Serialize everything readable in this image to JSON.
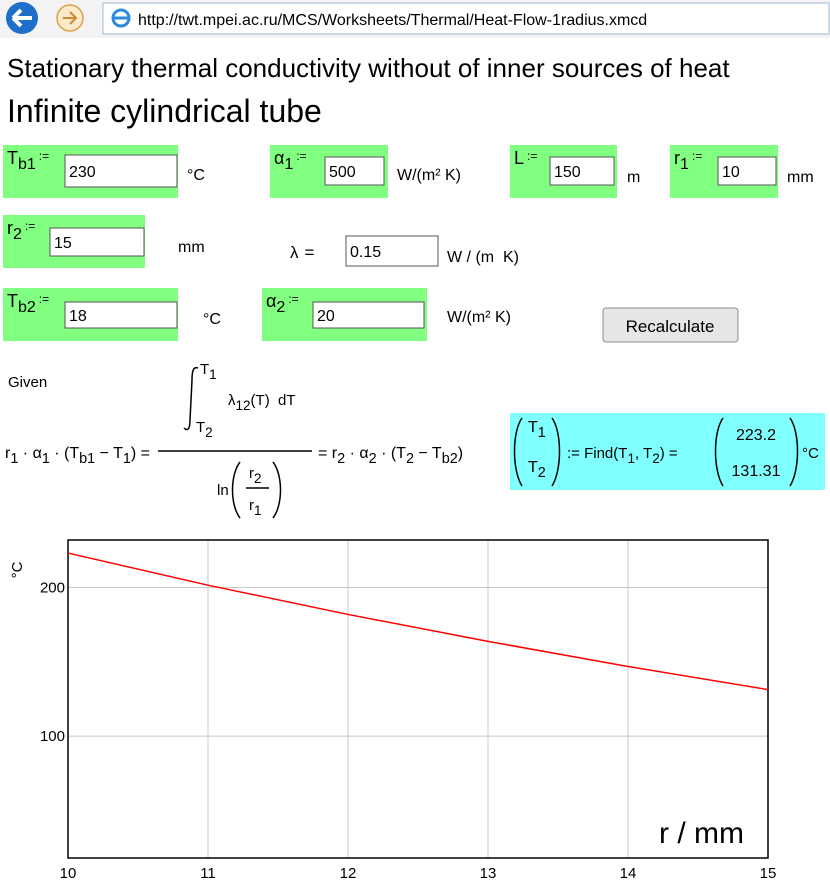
{
  "browser": {
    "url": "http://twt.mpei.ac.ru/MCS/Worksheets/Thermal/Heat-Flow-1radius.xmcd"
  },
  "header": {
    "title": "Stationary thermal conductivity without of inner sources of heat",
    "subtitle": "Infinite cylindrical tube"
  },
  "inputs": [
    {
      "symbol": "T",
      "sub": "b1",
      "op": ":=",
      "value": 230,
      "unit": "°C"
    },
    {
      "symbol": "α",
      "sub": "1",
      "op": ":=",
      "value": 500,
      "unit": "W/(m² K)"
    },
    {
      "symbol": "L",
      "op": ":=",
      "value": 150,
      "unit": "m"
    },
    {
      "symbol": "r",
      "sub": "1",
      "op": ":=",
      "value": 10,
      "unit": "mm"
    },
    {
      "symbol": "r",
      "sub": "2",
      "op": ":=",
      "value": 15,
      "unit": "mm"
    },
    {
      "symbol": "T",
      "sub": "b2",
      "op": ":=",
      "value": 18,
      "unit": "°C"
    },
    {
      "symbol": "α",
      "sub": "2",
      "op": ":=",
      "value": 20,
      "unit": "W/(m² K)"
    }
  ],
  "lambda": {
    "symbol": "λ",
    "op": "=",
    "value": 0.15,
    "unit": "W / (m  K)"
  },
  "button": {
    "label": "Recalculate"
  },
  "formula": {
    "given": "Given",
    "lhs": [
      {
        "text": "r",
        "sub": "1"
      },
      {
        "text": " · α",
        "sub": "1"
      },
      {
        "text": " · (T",
        "sub": "b1"
      },
      {
        "text": " − T",
        "sub": "1"
      },
      {
        "text": ") ="
      }
    ],
    "upper": {
      "text": "T",
      "sub": "1"
    },
    "lower": {
      "text": "T",
      "sub": "2"
    },
    "integrand": [
      {
        "text": "λ",
        "sub": "12"
      },
      {
        "text": "(T)  dT"
      }
    ],
    "ln": "ln",
    "ratio_num": {
      "text": "r",
      "sub": "2"
    },
    "ratio_den": {
      "text": "r",
      "sub": "1"
    },
    "rhs": [
      {
        "text": "= r",
        "sub": "2"
      },
      {
        "text": " · α",
        "sub": "2"
      },
      {
        "text": " · (T",
        "sub": "2"
      },
      {
        "text": " − T",
        "sub": "b2"
      },
      {
        "text": ")"
      }
    ]
  },
  "result": {
    "vector": [
      {
        "text": "T",
        "sub": "1"
      },
      {
        "text": "T",
        "sub": "2"
      }
    ],
    "find": [
      {
        "text": ":= Find(T",
        "sub": "1"
      },
      {
        "text": ", T",
        "sub": "2"
      },
      {
        "text": ") ="
      }
    ],
    "values": [
      223.2,
      131.31
    ],
    "unit": "°C"
  },
  "chart_data": {
    "type": "line",
    "x_label": "r / mm",
    "y_label": "°C",
    "x": [
      10,
      11,
      12,
      13,
      14,
      15
    ],
    "series": [
      {
        "color": "#ff0000",
        "values": [
          223.2,
          201.6,
          181.9,
          163.8,
          146.9,
          131.31
        ]
      }
    ],
    "xlim": [
      10,
      15
    ],
    "ylim": [
      18,
      232
    ],
    "xticks": [
      10,
      11,
      12,
      13,
      14,
      15
    ],
    "yticks": [
      100,
      200
    ],
    "grid": true
  }
}
